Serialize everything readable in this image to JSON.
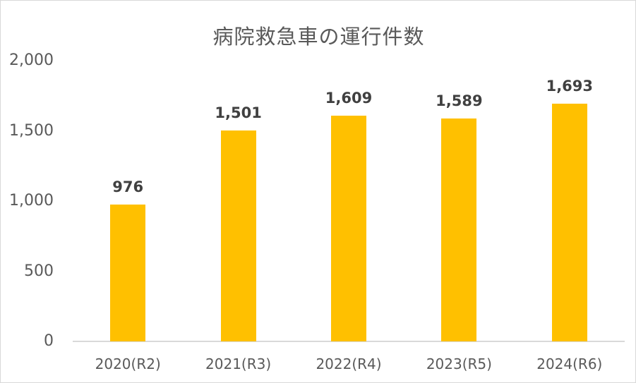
{
  "chart_data": {
    "type": "bar",
    "title": "病院救急車の運行件数",
    "categories": [
      "2020(R2)",
      "2021(R3)",
      "2022(R4)",
      "2023(R5)",
      "2024(R6)"
    ],
    "values": [
      976,
      1501,
      1609,
      1589,
      1693
    ],
    "data_labels": [
      "976",
      "1,501",
      "1,609",
      "1,589",
      "1,693"
    ],
    "xlabel": "",
    "ylabel": "",
    "ylim": [
      0,
      2000
    ],
    "y_ticks": [
      0,
      500,
      1000,
      1500,
      2000
    ],
    "y_tick_labels": [
      "0",
      "500",
      "1,000",
      "1,500",
      "2,000"
    ],
    "grid": false,
    "legend": null,
    "bar_color": "#FFC000"
  },
  "colors": {
    "bar": "#FFC000",
    "text": "#595959",
    "data_label": "#404040",
    "axis": "#d9d9d9"
  }
}
